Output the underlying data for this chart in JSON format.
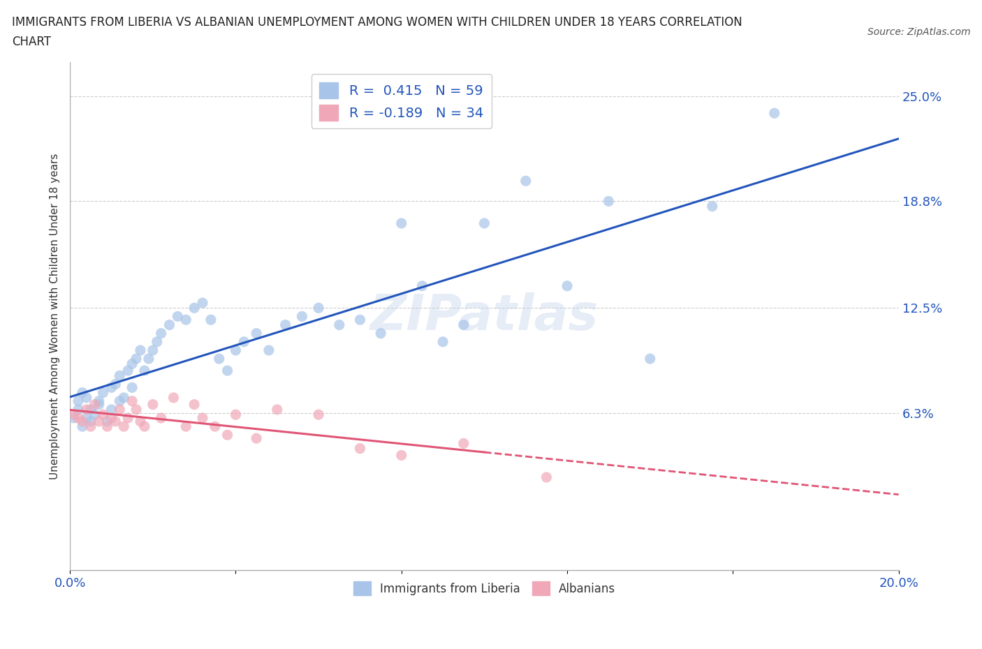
{
  "title_line1": "IMMIGRANTS FROM LIBERIA VS ALBANIAN UNEMPLOYMENT AMONG WOMEN WITH CHILDREN UNDER 18 YEARS CORRELATION",
  "title_line2": "CHART",
  "source": "Source: ZipAtlas.com",
  "ylabel": "Unemployment Among Women with Children Under 18 years",
  "xlim": [
    0.0,
    0.2
  ],
  "ylim": [
    -0.03,
    0.27
  ],
  "x_ticks": [
    0.0,
    0.04,
    0.08,
    0.12,
    0.16,
    0.2
  ],
  "x_tick_labels": [
    "0.0%",
    "",
    "",
    "",
    "",
    "20.0%"
  ],
  "y_ticks_right": [
    0.0,
    0.063,
    0.125,
    0.188,
    0.25
  ],
  "y_tick_labels_right": [
    "",
    "6.3%",
    "12.5%",
    "18.8%",
    "25.0%"
  ],
  "legend1_label": "R =  0.415   N = 59",
  "legend2_label": "R = -0.189   N = 34",
  "liberia_color": "#a8c4e8",
  "albanian_color": "#f0a8b8",
  "line1_color": "#2255bb",
  "line2_color": "#e05575",
  "watermark": "ZIPatlas",
  "liberia_x": [
    0.001,
    0.002,
    0.002,
    0.003,
    0.003,
    0.004,
    0.004,
    0.005,
    0.005,
    0.006,
    0.007,
    0.007,
    0.008,
    0.009,
    0.01,
    0.01,
    0.011,
    0.012,
    0.012,
    0.013,
    0.014,
    0.015,
    0.015,
    0.016,
    0.017,
    0.018,
    0.019,
    0.02,
    0.021,
    0.022,
    0.024,
    0.026,
    0.028,
    0.03,
    0.032,
    0.034,
    0.036,
    0.038,
    0.04,
    0.042,
    0.045,
    0.048,
    0.052,
    0.056,
    0.06,
    0.065,
    0.07,
    0.075,
    0.08,
    0.085,
    0.09,
    0.095,
    0.1,
    0.11,
    0.12,
    0.13,
    0.14,
    0.155,
    0.17
  ],
  "liberia_y": [
    0.06,
    0.065,
    0.07,
    0.055,
    0.075,
    0.06,
    0.072,
    0.058,
    0.065,
    0.062,
    0.068,
    0.07,
    0.075,
    0.058,
    0.078,
    0.065,
    0.08,
    0.07,
    0.085,
    0.072,
    0.088,
    0.078,
    0.092,
    0.095,
    0.1,
    0.088,
    0.095,
    0.1,
    0.105,
    0.11,
    0.115,
    0.12,
    0.118,
    0.125,
    0.128,
    0.118,
    0.095,
    0.088,
    0.1,
    0.105,
    0.11,
    0.1,
    0.115,
    0.12,
    0.125,
    0.115,
    0.118,
    0.11,
    0.175,
    0.138,
    0.105,
    0.115,
    0.175,
    0.2,
    0.138,
    0.188,
    0.095,
    0.185,
    0.24
  ],
  "albanian_x": [
    0.001,
    0.002,
    0.003,
    0.004,
    0.005,
    0.006,
    0.007,
    0.008,
    0.009,
    0.01,
    0.011,
    0.012,
    0.013,
    0.014,
    0.015,
    0.016,
    0.017,
    0.018,
    0.02,
    0.022,
    0.025,
    0.028,
    0.03,
    0.032,
    0.035,
    0.038,
    0.04,
    0.045,
    0.05,
    0.06,
    0.07,
    0.08,
    0.095,
    0.115
  ],
  "albanian_y": [
    0.062,
    0.06,
    0.058,
    0.065,
    0.055,
    0.068,
    0.058,
    0.062,
    0.055,
    0.06,
    0.058,
    0.065,
    0.055,
    0.06,
    0.07,
    0.065,
    0.058,
    0.055,
    0.068,
    0.06,
    0.072,
    0.055,
    0.068,
    0.06,
    0.055,
    0.05,
    0.062,
    0.048,
    0.065,
    0.062,
    0.042,
    0.038,
    0.045,
    0.025
  ]
}
